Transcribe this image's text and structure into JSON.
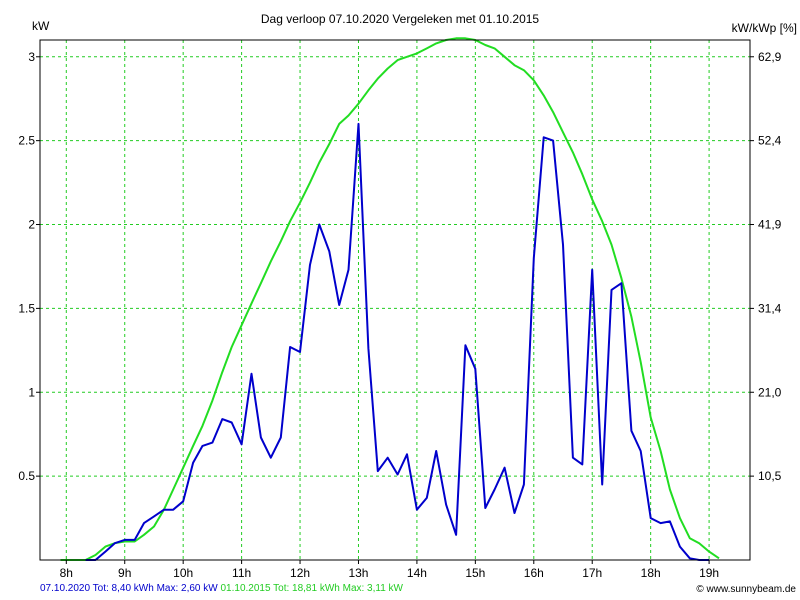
{
  "chart_data": {
    "type": "line",
    "title": "Dag  verloop 07.10.2020   Vergeleken met 01.10.2015",
    "ylabel_left": "kW",
    "ylabel_right": "kW/kWp [%]",
    "x_ticks": [
      "8h",
      "9h",
      "10h",
      "11h",
      "12h",
      "13h",
      "14h",
      "15h",
      "16h",
      "17h",
      "18h",
      "19h"
    ],
    "x_tick_values": [
      8,
      9,
      10,
      11,
      12,
      13,
      14,
      15,
      16,
      17,
      18,
      19
    ],
    "xlim": [
      7.55,
      19.7
    ],
    "y_ticks_left": [
      "0.5",
      "1",
      "1.5",
      "2",
      "2.5",
      "3"
    ],
    "y_tick_values_left": [
      0.5,
      1,
      1.5,
      2,
      2.5,
      3
    ],
    "y_ticks_right": [
      "10,5",
      "21,0",
      "31,4",
      "41,9",
      "52,4",
      "62,9"
    ],
    "ylim": [
      0,
      3.1
    ],
    "grid": true,
    "colors": {
      "series1": "#0000cc",
      "series2": "#22dd22",
      "grid": "#22cc22",
      "axis": "#000000"
    },
    "series": [
      {
        "name": "07.10.2020",
        "color": "#0000cc",
        "x": [
          8.33,
          8.5,
          8.67,
          8.83,
          9.0,
          9.17,
          9.33,
          9.5,
          9.67,
          9.83,
          10.0,
          10.17,
          10.33,
          10.5,
          10.67,
          10.83,
          11.0,
          11.17,
          11.33,
          11.5,
          11.67,
          11.83,
          12.0,
          12.17,
          12.33,
          12.5,
          12.67,
          12.83,
          13.0,
          13.17,
          13.33,
          13.5,
          13.67,
          13.83,
          14.0,
          14.17,
          14.33,
          14.5,
          14.67,
          14.83,
          15.0,
          15.17,
          15.33,
          15.5,
          15.67,
          15.83,
          16.0,
          16.17,
          16.33,
          16.5,
          16.67,
          16.83,
          17.0,
          17.17,
          17.33,
          17.5,
          17.67,
          17.83,
          18.0,
          18.17,
          18.33,
          18.5,
          18.67,
          18.83,
          19.0
        ],
        "values": [
          0.0,
          0.0,
          0.05,
          0.1,
          0.12,
          0.12,
          0.22,
          0.26,
          0.3,
          0.3,
          0.35,
          0.58,
          0.68,
          0.7,
          0.84,
          0.82,
          0.69,
          1.11,
          0.73,
          0.61,
          0.73,
          1.27,
          1.24,
          1.76,
          2.0,
          1.84,
          1.52,
          1.73,
          2.6,
          1.26,
          0.53,
          0.61,
          0.51,
          0.63,
          0.3,
          0.37,
          0.65,
          0.33,
          0.15,
          1.28,
          1.14,
          0.31,
          0.42,
          0.55,
          0.28,
          0.45,
          1.8,
          2.52,
          2.5,
          1.88,
          0.61,
          0.57,
          1.73,
          0.45,
          1.61,
          1.65,
          0.77,
          0.65,
          0.25,
          0.22,
          0.23,
          0.08,
          0.01,
          0.0,
          0.0
        ]
      },
      {
        "name": "01.10.2015",
        "color": "#22dd22",
        "x": [
          7.9,
          8.17,
          8.33,
          8.5,
          8.67,
          8.83,
          9.0,
          9.17,
          9.33,
          9.5,
          9.67,
          9.83,
          10.0,
          10.17,
          10.33,
          10.5,
          10.67,
          10.83,
          11.0,
          11.17,
          11.33,
          11.5,
          11.67,
          11.83,
          12.0,
          12.17,
          12.33,
          12.5,
          12.67,
          12.83,
          13.0,
          13.17,
          13.33,
          13.5,
          13.67,
          13.83,
          14.0,
          14.17,
          14.33,
          14.5,
          14.67,
          14.83,
          15.0,
          15.17,
          15.33,
          15.5,
          15.67,
          15.83,
          16.0,
          16.17,
          16.33,
          16.5,
          16.67,
          16.83,
          17.0,
          17.17,
          17.33,
          17.5,
          17.67,
          17.83,
          18.0,
          18.17,
          18.33,
          18.5,
          18.67,
          18.83,
          19.0,
          19.17
        ],
        "values": [
          0.0,
          0.0,
          0.0,
          0.03,
          0.08,
          0.1,
          0.11,
          0.11,
          0.15,
          0.2,
          0.3,
          0.42,
          0.55,
          0.68,
          0.8,
          0.95,
          1.12,
          1.27,
          1.4,
          1.53,
          1.65,
          1.78,
          1.9,
          2.02,
          2.13,
          2.25,
          2.37,
          2.48,
          2.6,
          2.65,
          2.72,
          2.8,
          2.87,
          2.93,
          2.98,
          3.0,
          3.02,
          3.05,
          3.08,
          3.1,
          3.11,
          3.11,
          3.1,
          3.07,
          3.05,
          3.0,
          2.95,
          2.92,
          2.86,
          2.77,
          2.67,
          2.55,
          2.43,
          2.3,
          2.15,
          2.02,
          1.88,
          1.68,
          1.45,
          1.18,
          0.85,
          0.65,
          0.42,
          0.25,
          0.13,
          0.1,
          0.05,
          0.01
        ]
      }
    ]
  },
  "footer": {
    "series1_label": "07.10.2020 Tot: 8,40 kWh Max: 2,60 kW",
    "series2_label": "01.10.2015 Tot: 18,81 kWh Max: 3,11 kW",
    "credit": "© www.sunnybeam.de"
  }
}
